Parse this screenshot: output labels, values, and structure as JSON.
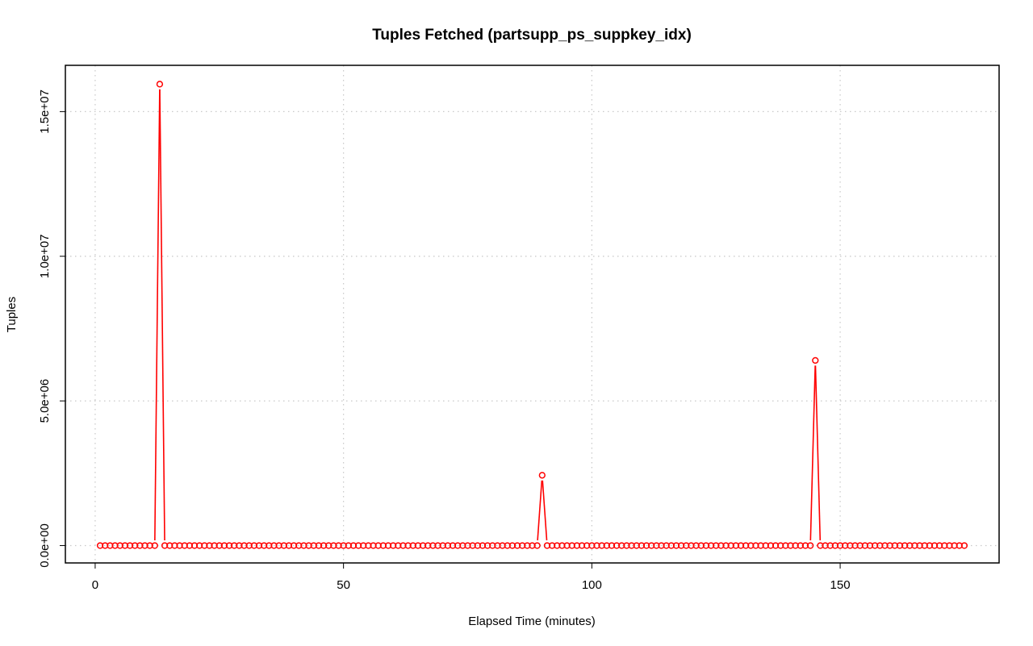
{
  "chart_data": {
    "type": "line",
    "title": "Tuples Fetched (partsupp_ps_suppkey_idx)",
    "xlabel": "Elapsed Time (minutes)",
    "ylabel": "Tuples",
    "xlim": [
      -6,
      182
    ],
    "ylim": [
      -600000,
      16600000
    ],
    "x_ticks": [
      0,
      50,
      100,
      150
    ],
    "x_tick_labels": [
      "0",
      "50",
      "100",
      "150"
    ],
    "y_ticks": [
      0,
      5000000,
      10000000,
      15000000
    ],
    "y_tick_labels": [
      "0.0e+00",
      "5.0e+06",
      "1.0e+07",
      "1.5e+07"
    ],
    "grid": true,
    "legend": "none",
    "series_color": "#ff0000",
    "x_start": 1,
    "x_end": 175,
    "baseline_value": 0,
    "spikes": [
      {
        "x": 13,
        "y": 15950000
      },
      {
        "x": 90,
        "y": 2430000
      },
      {
        "x": 145,
        "y": 6400000
      }
    ]
  }
}
